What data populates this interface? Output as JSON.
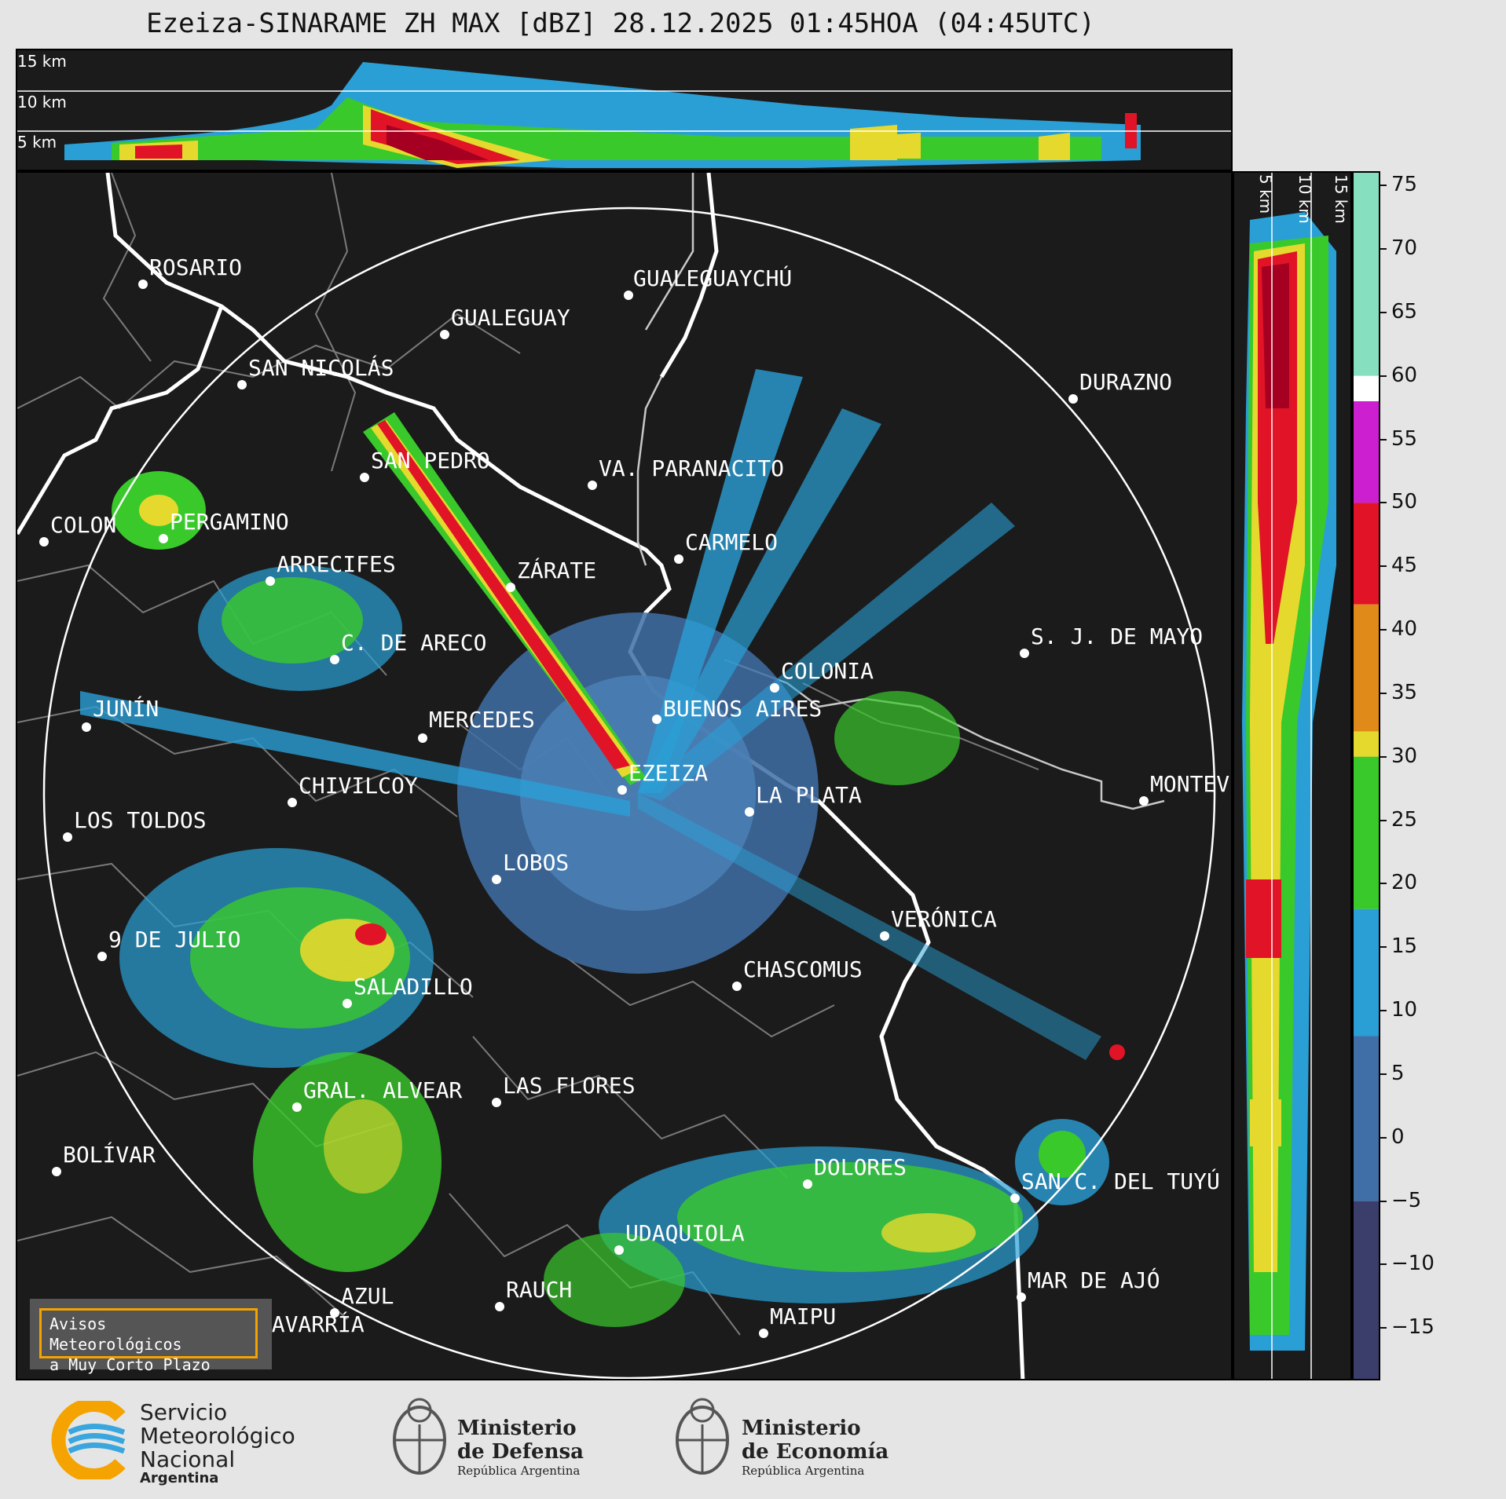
{
  "title": "Ezeiza-SINARAME ZH MAX [dBZ] 28.12.2025 01:45HOA (04:45UTC)",
  "top_panel": {
    "height_labels": [
      "15 km",
      "10 km",
      "5 km"
    ]
  },
  "right_panel": {
    "height_labels": [
      "5 km",
      "10 km",
      "15 km"
    ]
  },
  "colorbar": {
    "unit": "dBZ",
    "ticks": [
      "75",
      "70",
      "65",
      "60",
      "55",
      "50",
      "45",
      "40",
      "35",
      "30",
      "25",
      "20",
      "15",
      "10",
      "5",
      "0",
      "−5",
      "−10",
      "−15"
    ],
    "colors": {
      "c_neg": "#3b3d6b",
      "c_low": "#3f6fa6",
      "c_blue": "#2a9fd6",
      "c_green": "#39c92b",
      "c_yellow": "#e6d92e",
      "c_orange": "#e08a1a",
      "c_red": "#e01426",
      "c_magenta": "#cc1fd0",
      "c_white": "#ffffff",
      "c_mint": "#86dfbf"
    }
  },
  "cities": [
    {
      "name": "ROSARIO"
    },
    {
      "name": "GUALEGUAYCHÚ"
    },
    {
      "name": "GUALEGUAY"
    },
    {
      "name": "SAN NICOLÁS"
    },
    {
      "name": "DURAZNO"
    },
    {
      "name": "SAN PEDRO"
    },
    {
      "name": "VA. PARANACITO"
    },
    {
      "name": "COLON"
    },
    {
      "name": "PERGAMINO"
    },
    {
      "name": "CARMELO"
    },
    {
      "name": "ARRECIFES"
    },
    {
      "name": "ZÁRATE"
    },
    {
      "name": "S. J. DE MAYO"
    },
    {
      "name": "C. DE ARECO"
    },
    {
      "name": "COLONIA"
    },
    {
      "name": "JUNÍN"
    },
    {
      "name": "BUENOS AIRES"
    },
    {
      "name": "MERCEDES"
    },
    {
      "name": "EZEIZA"
    },
    {
      "name": "MONTEV"
    },
    {
      "name": "CHIVILCOY"
    },
    {
      "name": "LA PLATA"
    },
    {
      "name": "LOS TOLDOS"
    },
    {
      "name": "LOBOS"
    },
    {
      "name": "VERÓNICA"
    },
    {
      "name": "9 DE JULIO"
    },
    {
      "name": "CHASCOMUS"
    },
    {
      "name": "SALADILLO"
    },
    {
      "name": "GRAL. ALVEAR"
    },
    {
      "name": "LAS FLORES"
    },
    {
      "name": "BOLÍVAR"
    },
    {
      "name": "DOLORES"
    },
    {
      "name": "SAN C. DEL TUYÚ"
    },
    {
      "name": "UDAQUIOLA"
    },
    {
      "name": "AZUL"
    },
    {
      "name": "RAUCH"
    },
    {
      "name": "MAR DE AJÓ"
    },
    {
      "name": "OLAVARRÍA"
    },
    {
      "name": "MAIPU"
    }
  ],
  "avisos": {
    "line1": "Avisos Meteorológicos",
    "line2": "a Muy Corto Plazo"
  },
  "footer": {
    "smn": {
      "line1": "Servicio",
      "line2": "Meteorológico",
      "line3": "Nacional",
      "line4": "Argentina"
    },
    "defensa": {
      "line1": "Ministerio",
      "line2": "de Defensa",
      "line3": "República Argentina"
    },
    "economia": {
      "line1": "Ministerio",
      "line2": "de Economía",
      "line3": "República Argentina"
    }
  }
}
